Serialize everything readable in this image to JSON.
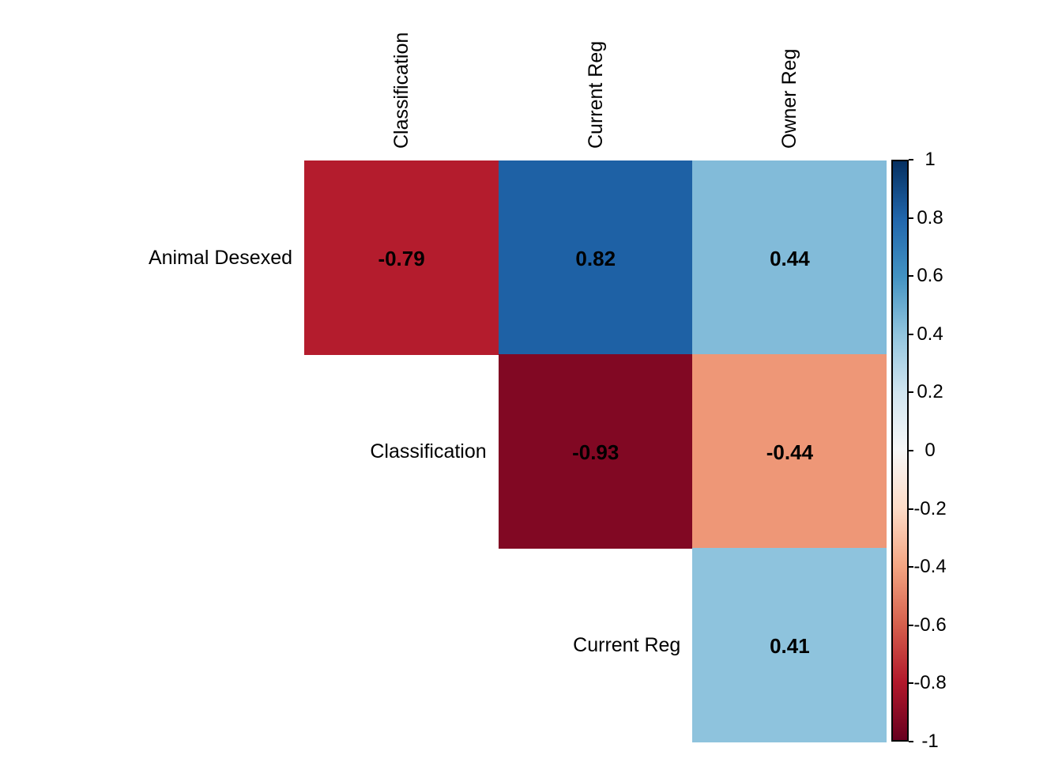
{
  "figure": {
    "kind": "correlation-heatmap",
    "background_color": "#ffffff",
    "text_color": "#000000"
  },
  "chart_data": {
    "type": "heatmap",
    "title": "",
    "variables": [
      "Animal Desexed",
      "Classification",
      "Current Reg",
      "Owner Reg"
    ],
    "column_labels": [
      "Classification",
      "Current Reg",
      "Owner Reg"
    ],
    "row_labels": [
      "Animal Desexed",
      "Classification",
      "Current Reg"
    ],
    "cells": [
      {
        "row": "Animal Desexed",
        "col": "Classification",
        "value": -0.79,
        "label": "-0.79"
      },
      {
        "row": "Animal Desexed",
        "col": "Current Reg",
        "value": 0.82,
        "label": "0.82"
      },
      {
        "row": "Animal Desexed",
        "col": "Owner Reg",
        "value": 0.44,
        "label": "0.44"
      },
      {
        "row": "Classification",
        "col": "Current Reg",
        "value": -0.93,
        "label": "-0.93"
      },
      {
        "row": "Classification",
        "col": "Owner Reg",
        "value": -0.44,
        "label": "-0.44"
      },
      {
        "row": "Current Reg",
        "col": "Owner Reg",
        "value": 0.41,
        "label": "0.41"
      }
    ],
    "colorbar": {
      "min": -1,
      "max": 1,
      "tick_labels": [
        "1",
        "0.8",
        "0.6",
        "0.4",
        "0.2",
        "0",
        "-0.2",
        "-0.4",
        "-0.6",
        "-0.8",
        "-1"
      ],
      "palette_low_to_high": [
        "#67001F",
        "#B2182B",
        "#D6604D",
        "#F4A582",
        "#FDDBC7",
        "#F7F7F7",
        "#D1E5F0",
        "#92C5DE",
        "#4393C3",
        "#2166AC",
        "#053061"
      ],
      "border_color": "#000000"
    },
    "layout_hints": {
      "triangle": "upper",
      "diagonal_shown": false,
      "legend_position": "right"
    }
  }
}
